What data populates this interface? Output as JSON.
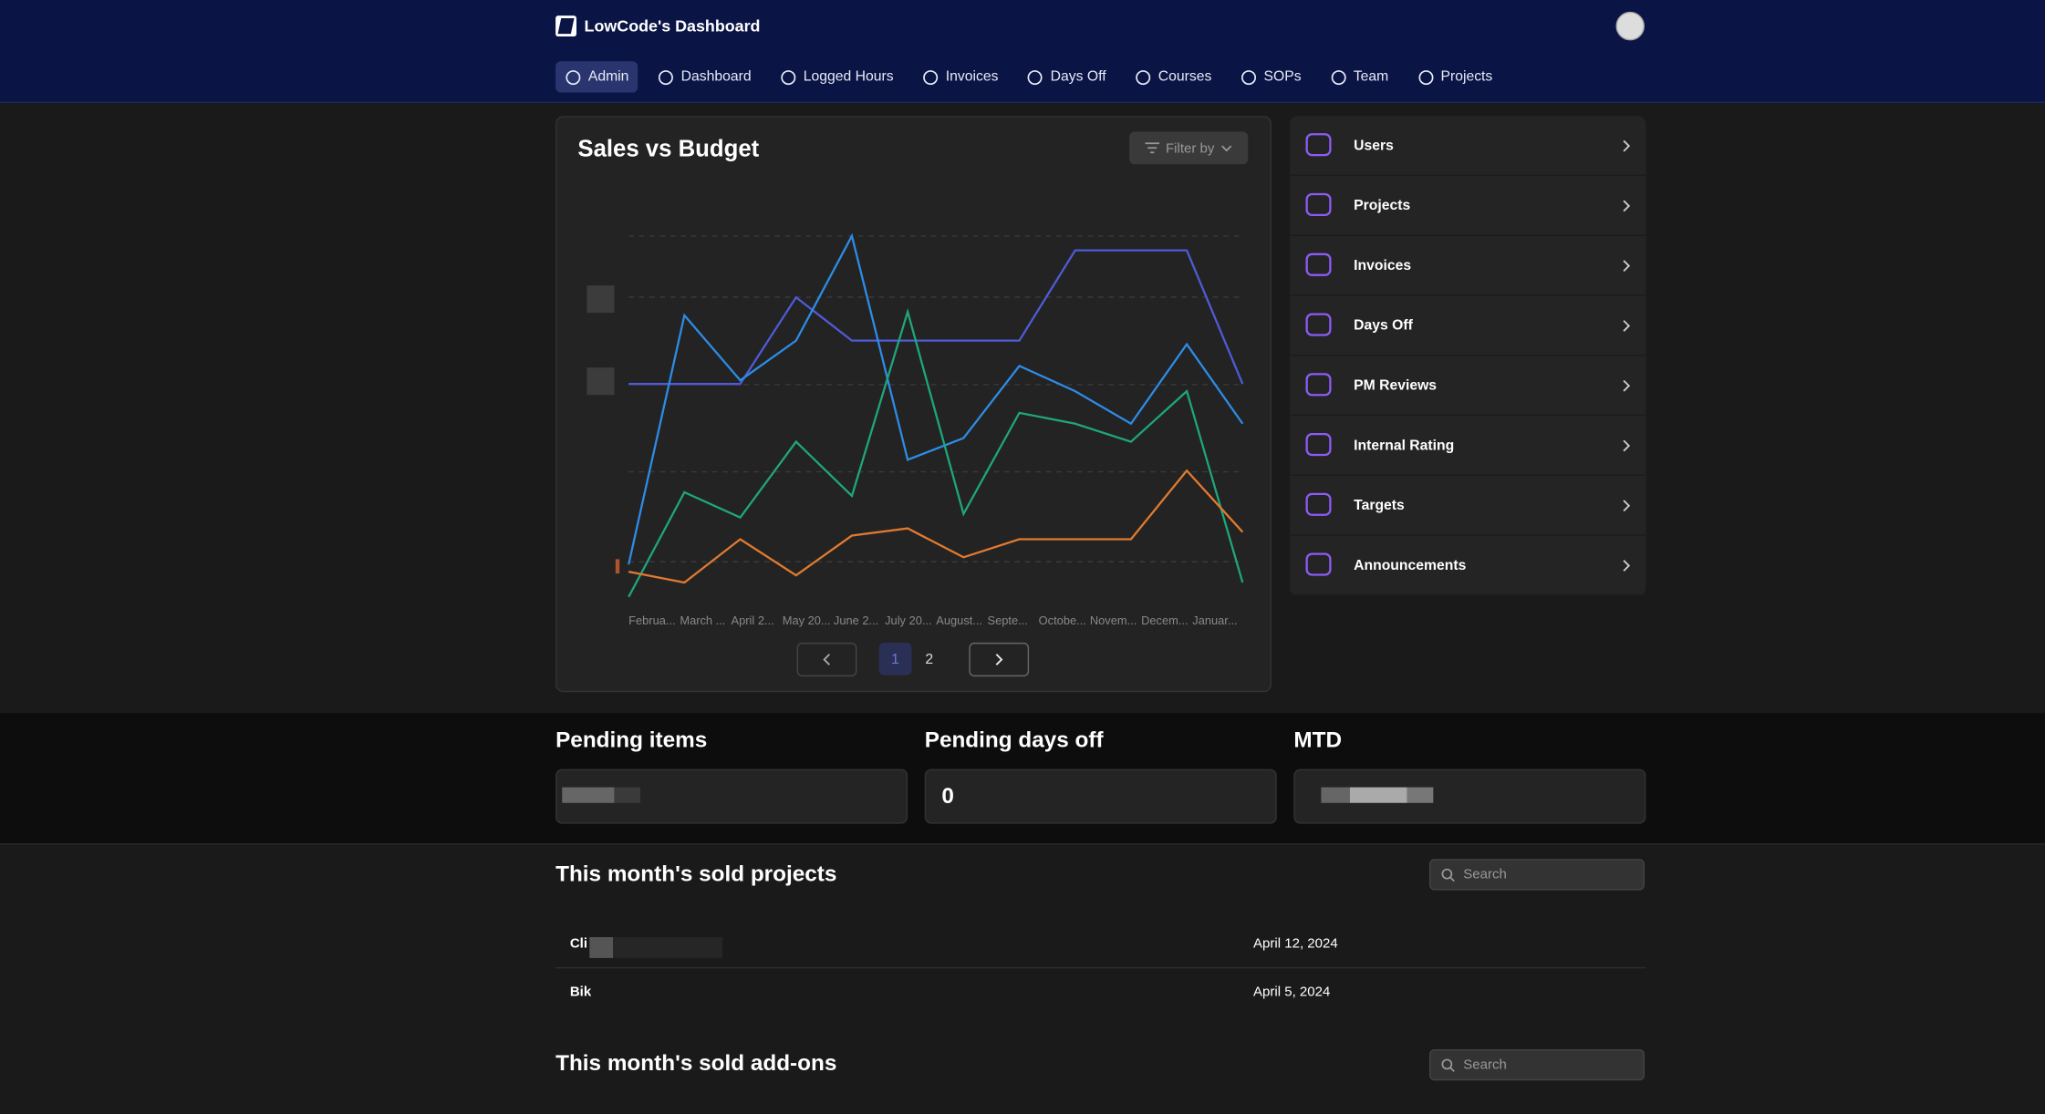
{
  "header": {
    "brand": "LowCode's Dashboard",
    "nav": [
      "Admin",
      "Dashboard",
      "Logged Hours",
      "Invoices",
      "Days Off",
      "Courses",
      "SOPs",
      "Team",
      "Projects"
    ]
  },
  "chart_card": {
    "filter": "Filter by",
    "pages": [
      1,
      2
    ]
  },
  "chart_data": {
    "type": "line",
    "title": "Sales vs Budget",
    "categories": [
      "Februa...",
      "March ...",
      "April 2...",
      "May 20...",
      "June 2...",
      "July 20...",
      "August...",
      "Septe...",
      "Octobe...",
      "Novem...",
      "Decem...",
      "Januar..."
    ],
    "series": [
      {
        "color": "#4f5bd5",
        "values": [
          59,
          59,
          59,
          83,
          71,
          71,
          71,
          71,
          96,
          96,
          96,
          59
        ]
      },
      {
        "color": "#2d8ce6",
        "values": [
          9,
          78,
          60,
          71,
          100,
          38,
          44,
          64,
          57,
          48,
          70,
          48
        ]
      },
      {
        "color": "#1fa67a",
        "values": [
          0,
          29,
          22,
          43,
          28,
          79,
          23,
          51,
          48,
          43,
          57,
          4
        ]
      },
      {
        "color": "#e07a30",
        "values": [
          7,
          4,
          16,
          6,
          17,
          19,
          11,
          16,
          16,
          16,
          35,
          18
        ]
      }
    ],
    "ylim": [
      0,
      100
    ]
  },
  "side_menu": [
    "Users",
    "Projects",
    "Invoices",
    "Days Off",
    "PM Reviews",
    "Internal Rating",
    "Targets",
    "Announcements"
  ],
  "stats": [
    {
      "title": "Pending items"
    },
    {
      "title": "Pending days off",
      "value": 0
    },
    {
      "title": "MTD"
    }
  ],
  "sold_projects": {
    "title": "This month's sold projects",
    "search": "Search",
    "rows": [
      {
        "name": "Cli",
        "date": "April 12, 2024"
      },
      {
        "name": "Bik",
        "date": "April 5, 2024"
      }
    ]
  },
  "sold_addons": {
    "title": "This month's sold add-ons",
    "search": "Search"
  }
}
